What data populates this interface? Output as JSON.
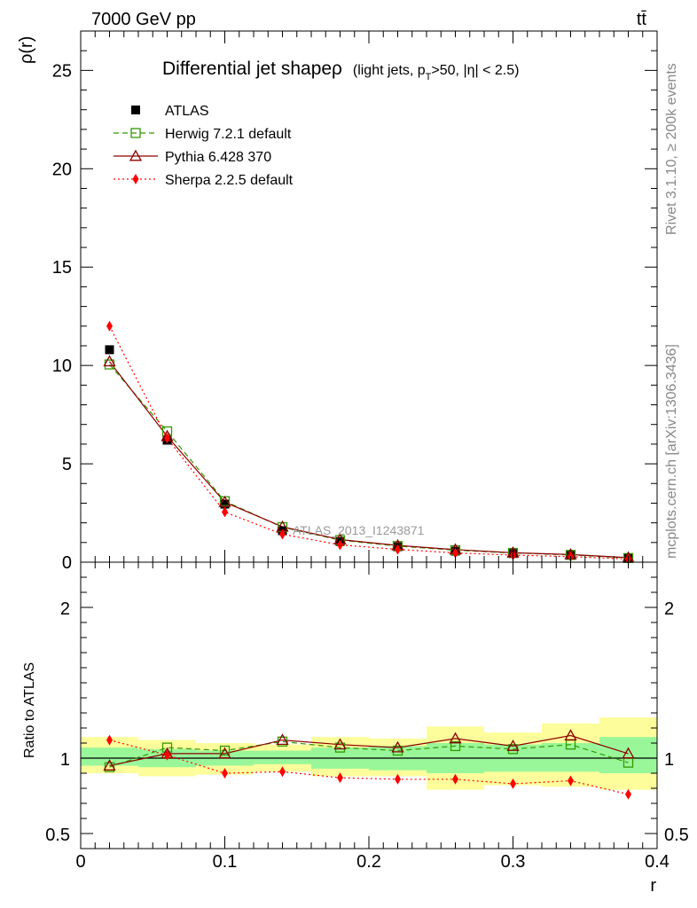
{
  "header": {
    "left": "7000 GeV pp",
    "right": "tt̄"
  },
  "side_text": {
    "rivet": "Rivet 3.1.10, ≥ 200k events",
    "mcplots": "mcplots.cern.ch [arXiv:1306.3436]"
  },
  "chart_data": [
    {
      "type": "line",
      "title_main": "Differential jet shapeρ",
      "title_sub": "(light jets, p",
      "title_sub_T": "T",
      "title_sub_end": ">50, |η| < 2.5)",
      "watermark": "ATLAS_2013_I1243871",
      "ylabel": "ρ(r)",
      "xlim": [
        0,
        0.4
      ],
      "ylim": [
        0,
        27
      ],
      "yticks": [
        0,
        5,
        10,
        15,
        20,
        25
      ],
      "ytick_labels": [
        "0",
        "5",
        "10",
        "15",
        "20",
        "25"
      ],
      "x": [
        0.02,
        0.06,
        0.1,
        0.14,
        0.18,
        0.22,
        0.26,
        0.3,
        0.34,
        0.38
      ],
      "legend_position": "top-left",
      "series": [
        {
          "name": "ATLAS",
          "color": "#000000",
          "marker": "square-filled",
          "line": "none",
          "values": [
            10.8,
            6.2,
            2.95,
            1.6,
            1.05,
            0.78,
            0.56,
            0.44,
            0.34,
            0.22
          ]
        },
        {
          "name": "Herwig 7.2.1 default",
          "color": "#339900",
          "marker": "square-open",
          "line": "dashed",
          "values": [
            10.05,
            6.65,
            3.1,
            1.78,
            1.12,
            0.82,
            0.61,
            0.47,
            0.37,
            0.21
          ]
        },
        {
          "name": "Pythia 6.428 370",
          "color": "#8b0000",
          "marker": "triangle-open",
          "line": "solid",
          "values": [
            10.2,
            6.4,
            3.05,
            1.8,
            1.15,
            0.85,
            0.64,
            0.48,
            0.39,
            0.23
          ]
        },
        {
          "name": "Sherpa 2.2.5 default",
          "color": "#ff0000",
          "marker": "diamond-filled",
          "line": "dotted",
          "values": [
            12.0,
            6.3,
            2.55,
            1.42,
            0.88,
            0.65,
            0.47,
            0.36,
            0.28,
            0.16
          ]
        }
      ]
    },
    {
      "type": "line",
      "ylabel": "Ratio to ATLAS",
      "xlabel": "r",
      "xlim": [
        0,
        0.4
      ],
      "ylim": [
        0.4,
        2.3
      ],
      "xticks": [
        0,
        0.1,
        0.2,
        0.3,
        0.4
      ],
      "xtick_labels": [
        "0",
        "0.1",
        "0.2",
        "0.3",
        "0.4"
      ],
      "yticks": [
        0.5,
        1,
        2
      ],
      "ytick_labels": [
        "0.5",
        "1",
        "2"
      ],
      "x": [
        0.02,
        0.06,
        0.1,
        0.14,
        0.18,
        0.22,
        0.26,
        0.3,
        0.34,
        0.38
      ],
      "bin_edges": [
        0,
        0.04,
        0.08,
        0.12,
        0.16,
        0.2,
        0.24,
        0.28,
        0.32,
        0.36,
        0.4
      ],
      "band_stat": [
        [
          0.95,
          1.07
        ],
        [
          0.94,
          1.06
        ],
        [
          0.95,
          1.05
        ],
        [
          0.96,
          1.05
        ],
        [
          0.93,
          1.07
        ],
        [
          0.92,
          1.08
        ],
        [
          0.9,
          1.1
        ],
        [
          0.91,
          1.09
        ],
        [
          0.91,
          1.1
        ],
        [
          0.9,
          1.14
        ]
      ],
      "band_total": [
        [
          0.9,
          1.14
        ],
        [
          0.88,
          1.12
        ],
        [
          0.89,
          1.1
        ],
        [
          0.91,
          1.09
        ],
        [
          0.88,
          1.14
        ],
        [
          0.88,
          1.13
        ],
        [
          0.79,
          1.21
        ],
        [
          0.82,
          1.17
        ],
        [
          0.81,
          1.23
        ],
        [
          0.79,
          1.27
        ]
      ],
      "band_colors": {
        "stat": "#99f799",
        "total": "#fdfd9b"
      },
      "series": [
        {
          "name": "Herwig 7.2.1 default",
          "color": "#339900",
          "marker": "square-open",
          "line": "dashed",
          "values": [
            0.94,
            1.07,
            1.05,
            1.11,
            1.07,
            1.05,
            1.08,
            1.06,
            1.09,
            0.97
          ]
        },
        {
          "name": "Pythia 6.428 370",
          "color": "#8b0000",
          "marker": "triangle-open",
          "line": "solid",
          "values": [
            0.95,
            1.03,
            1.03,
            1.12,
            1.09,
            1.07,
            1.13,
            1.08,
            1.15,
            1.03
          ]
        },
        {
          "name": "Sherpa 2.2.5 default",
          "color": "#ff0000",
          "marker": "diamond-filled",
          "line": "dotted",
          "values": [
            1.12,
            1.02,
            0.9,
            0.91,
            0.87,
            0.86,
            0.86,
            0.83,
            0.85,
            0.76
          ]
        }
      ]
    }
  ]
}
